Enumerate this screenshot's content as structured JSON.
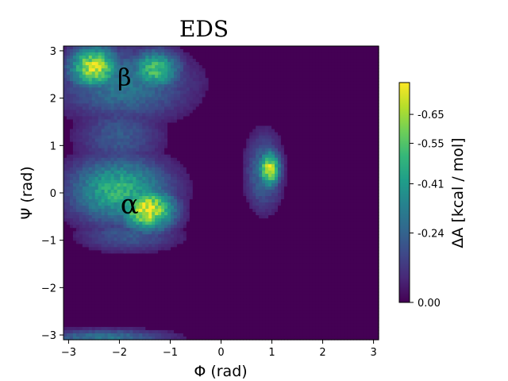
{
  "chart_data": {
    "type": "heatmap",
    "title": "EDS",
    "xlabel": "Φ (rad)",
    "ylabel": "Ψ (rad)",
    "xlim": [
      -3.1,
      3.1
    ],
    "ylim": [
      -3.1,
      3.1
    ],
    "xticks": [
      -3,
      -2,
      -1,
      0,
      1,
      2,
      3
    ],
    "xtick_labels": [
      "−3",
      "−2",
      "−1",
      "0",
      "1",
      "2",
      "3"
    ],
    "yticks": [
      -3,
      -2,
      -1,
      0,
      1,
      2,
      3
    ],
    "ytick_labels": [
      "−3",
      "−2",
      "−1",
      "0",
      "1",
      "2",
      "3"
    ],
    "colormap": [
      "#440154",
      "#482878",
      "#3e4989",
      "#31688e",
      "#26828e",
      "#1f9e89",
      "#35b779",
      "#6ece58",
      "#b5de2b",
      "#fde725"
    ],
    "colorbar": {
      "label": "ΔA [kcal / mol]",
      "ticks": [
        0.0,
        0.24,
        0.41,
        0.55,
        0.65
      ],
      "tick_labels": [
        "0.00",
        "-0.24",
        "-0.41",
        "-0.55",
        "-0.65"
      ],
      "max": 0.76
    },
    "annotations": [
      {
        "text": "β",
        "x": -1.9,
        "y": 2.45
      },
      {
        "text": "α",
        "x": -1.8,
        "y": -0.25
      }
    ],
    "density_regions": [
      {
        "name": "beta",
        "phi": -2.5,
        "psi": 2.65,
        "sigma_phi": 0.35,
        "sigma_psi": 0.32,
        "peak": 0.72
      },
      {
        "name": "beta-right",
        "phi": -1.3,
        "psi": 2.6,
        "sigma_phi": 0.35,
        "sigma_psi": 0.3,
        "peak": 0.55
      },
      {
        "name": "beta-spread",
        "phi": -1.9,
        "psi": 2.3,
        "sigma_phi": 0.9,
        "sigma_psi": 0.55,
        "peak": 0.32
      },
      {
        "name": "bridge",
        "phi": -2.0,
        "psi": 1.2,
        "sigma_phi": 0.6,
        "sigma_psi": 0.5,
        "peak": 0.22
      },
      {
        "name": "alpha",
        "phi": -1.45,
        "psi": -0.35,
        "sigma_phi": 0.38,
        "sigma_psi": 0.32,
        "peak": 0.76
      },
      {
        "name": "alpha-spread",
        "phi": -2.0,
        "psi": 0.05,
        "sigma_phi": 0.7,
        "sigma_psi": 0.5,
        "peak": 0.5
      },
      {
        "name": "alpha-tail",
        "phi": -1.8,
        "psi": -0.9,
        "sigma_phi": 0.7,
        "sigma_psi": 0.25,
        "peak": 0.22
      },
      {
        "name": "alpha-left",
        "phi": 0.95,
        "psi": 0.5,
        "sigma_phi": 0.15,
        "sigma_psi": 0.28,
        "peak": 0.72
      },
      {
        "name": "alpha-left-halo",
        "phi": 0.85,
        "psi": 0.45,
        "sigma_phi": 0.25,
        "sigma_psi": 0.55,
        "peak": 0.3
      },
      {
        "name": "bottom-edge",
        "phi": -2.3,
        "psi": -3.05,
        "sigma_phi": 0.9,
        "sigma_psi": 0.12,
        "peak": 0.3
      }
    ]
  }
}
